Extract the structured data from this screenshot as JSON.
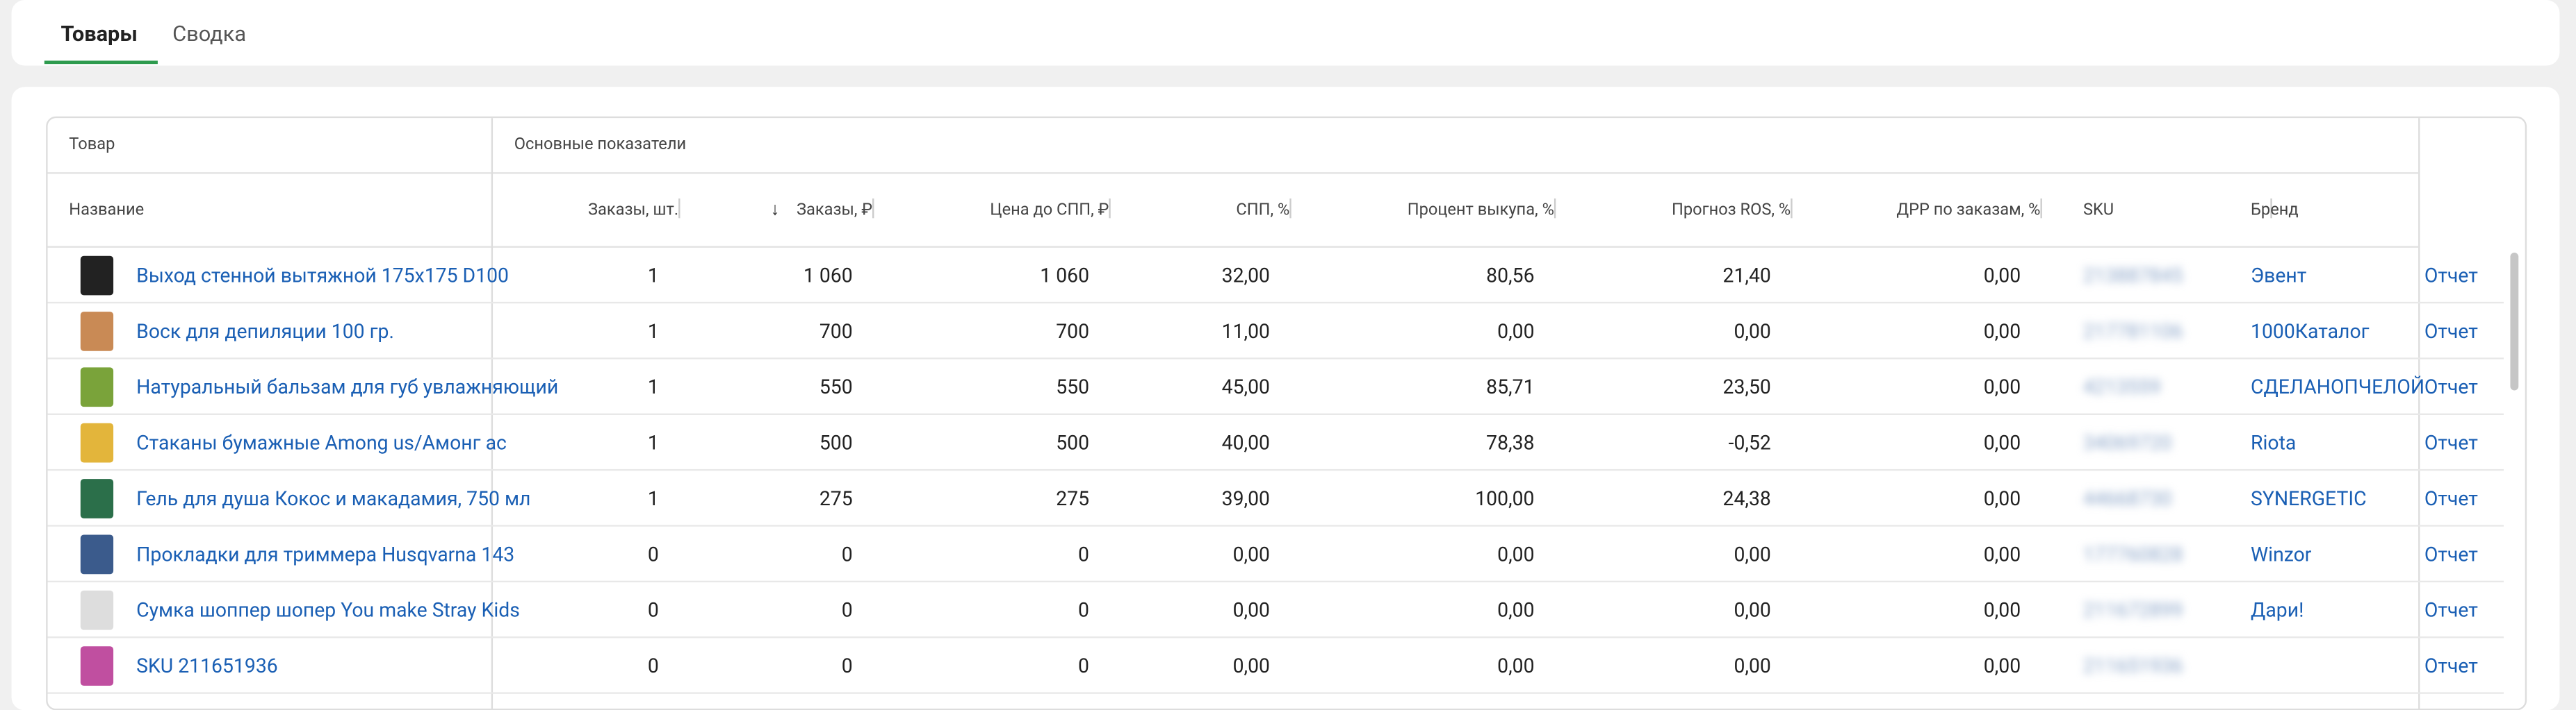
{
  "tabs": [
    "Товары",
    "Сводка"
  ],
  "table": {
    "group_headers": [
      "Товар",
      "Основные показатели"
    ],
    "columns": [
      "Название",
      "Заказы, шт.",
      "Заказы, ₽",
      "Цена до СПП, ₽",
      "СПП, %",
      "Процент выкупа, %",
      "Прогноз ROS, %",
      "ДРР по заказам, %",
      "SKU",
      "Бренд"
    ],
    "rows": [
      [
        "Выход стенной вытяжной 175x175 D100",
        "1",
        "1 060",
        "1 060",
        "32,00",
        "80,56",
        "21,40",
        "0,00",
        "213887845",
        "Эвент",
        "Отчет"
      ],
      [
        "Воск для депиляции 100 гр.",
        "1",
        "700",
        "700",
        "11,00",
        "0,00",
        "0,00",
        "0,00",
        "217781106",
        "1000Каталог",
        "Отчет"
      ],
      [
        "Натуральный бальзам для губ увлажняющий",
        "1",
        "550",
        "550",
        "45,00",
        "85,71",
        "23,50",
        "0,00",
        "4213559",
        "СДЕЛАНОПЧЕЛОЙ",
        "Отчет"
      ],
      [
        "Стаканы бумажные Among us/Амонг ас",
        "1",
        "500",
        "500",
        "40,00",
        "78,38",
        "-0,52",
        "0,00",
        "34069720",
        "Riota",
        "Отчет"
      ],
      [
        "Гель для душа Кокос и макадамия, 750 мл",
        "1",
        "275",
        "275",
        "39,00",
        "100,00",
        "24,38",
        "0,00",
        "44668730",
        "SYNERGETIC",
        "Отчет"
      ],
      [
        "Прокладки для триммера Husqvarna 143",
        "0",
        "0",
        "0",
        "0,00",
        "0,00",
        "0,00",
        "0,00",
        "177760828",
        "Winzor",
        "Отчет"
      ],
      [
        "Сумка шоппер шопер You make Stray Kids",
        "0",
        "0",
        "0",
        "0,00",
        "0,00",
        "0,00",
        "0,00",
        "211672899",
        "Дари!",
        "Отчет"
      ],
      [
        "SKU 211651936",
        "0",
        "0",
        "0",
        "0,00",
        "0,00",
        "0,00",
        "0,00",
        "211651936",
        null,
        "Отчет"
      ]
    ]
  }
}
